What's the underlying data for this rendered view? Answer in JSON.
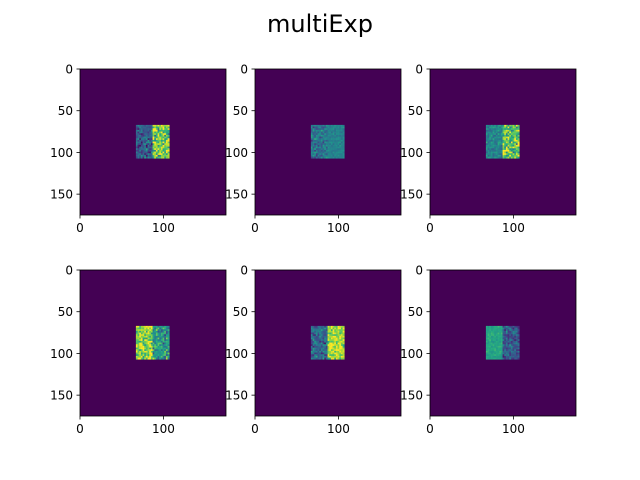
{
  "chart_data": {
    "type": "heatmap",
    "title": "multiExp",
    "colormap": "viridis",
    "panels": [
      {
        "index": 1,
        "xlim": [
          0,
          175
        ],
        "ylim": [
          175,
          0
        ],
        "xticks": [
          0,
          100
        ],
        "xtick_labels": [
          "0",
          "100"
        ],
        "yticks": [
          0,
          50,
          100,
          150
        ],
        "ytick_labels": [
          "0",
          "50",
          "100",
          "150"
        ],
        "background_value": 0.0,
        "square": {
          "x0": 67,
          "x1": 107,
          "y0": 67,
          "y1": 107
        },
        "halves": [
          {
            "x0": 67,
            "x1": 87,
            "mean": 0.3,
            "noise": 0.12
          },
          {
            "x0": 87,
            "x1": 107,
            "mean": 0.8,
            "noise": 0.18
          }
        ]
      },
      {
        "index": 2,
        "xlim": [
          0,
          175
        ],
        "ylim": [
          175,
          0
        ],
        "xticks": [
          0,
          100
        ],
        "xtick_labels": [
          "0",
          "100"
        ],
        "yticks": [
          0,
          50,
          100,
          150
        ],
        "ytick_labels": [
          "0",
          "50",
          "100",
          "150"
        ],
        "background_value": 0.0,
        "square": {
          "x0": 67,
          "x1": 107,
          "y0": 67,
          "y1": 107
        },
        "halves": [
          {
            "x0": 67,
            "x1": 87,
            "mean": 0.4,
            "noise": 0.1
          },
          {
            "x0": 87,
            "x1": 107,
            "mean": 0.45,
            "noise": 0.04
          }
        ]
      },
      {
        "index": 3,
        "xlim": [
          0,
          175
        ],
        "ylim": [
          175,
          0
        ],
        "xticks": [
          0,
          100
        ],
        "xtick_labels": [
          "0",
          "100"
        ],
        "yticks": [
          0,
          50,
          100,
          150
        ],
        "ytick_labels": [
          "0",
          "50",
          "100",
          "150"
        ],
        "background_value": 0.0,
        "square": {
          "x0": 67,
          "x1": 107,
          "y0": 67,
          "y1": 107
        },
        "halves": [
          {
            "x0": 67,
            "x1": 87,
            "mean": 0.45,
            "noise": 0.08
          },
          {
            "x0": 87,
            "x1": 107,
            "mean": 0.75,
            "noise": 0.18
          }
        ]
      },
      {
        "index": 4,
        "xlim": [
          0,
          175
        ],
        "ylim": [
          175,
          0
        ],
        "xticks": [
          0,
          100
        ],
        "xtick_labels": [
          "0",
          "100"
        ],
        "yticks": [
          0,
          50,
          100,
          150
        ],
        "ytick_labels": [
          "0",
          "50",
          "100",
          "150"
        ],
        "background_value": 0.0,
        "square": {
          "x0": 67,
          "x1": 107,
          "y0": 67,
          "y1": 107
        },
        "halves": [
          {
            "x0": 67,
            "x1": 87,
            "mean": 0.85,
            "noise": 0.15
          },
          {
            "x0": 87,
            "x1": 107,
            "mean": 0.55,
            "noise": 0.15
          }
        ]
      },
      {
        "index": 5,
        "xlim": [
          0,
          175
        ],
        "ylim": [
          175,
          0
        ],
        "xticks": [
          0,
          100
        ],
        "xtick_labels": [
          "0",
          "100"
        ],
        "yticks": [
          0,
          50,
          100,
          150
        ],
        "ytick_labels": [
          "0",
          "50",
          "100",
          "150"
        ],
        "background_value": 0.0,
        "square": {
          "x0": 67,
          "x1": 107,
          "y0": 67,
          "y1": 107
        },
        "halves": [
          {
            "x0": 67,
            "x1": 87,
            "mean": 0.35,
            "noise": 0.12
          },
          {
            "x0": 87,
            "x1": 107,
            "mean": 0.88,
            "noise": 0.12
          }
        ]
      },
      {
        "index": 6,
        "xlim": [
          0,
          175
        ],
        "ylim": [
          175,
          0
        ],
        "xticks": [
          0,
          100
        ],
        "xtick_labels": [
          "0",
          "100"
        ],
        "yticks": [
          0,
          50,
          100,
          150
        ],
        "ytick_labels": [
          "0",
          "50",
          "100",
          "150"
        ],
        "background_value": 0.0,
        "square": {
          "x0": 67,
          "x1": 107,
          "y0": 67,
          "y1": 107
        },
        "halves": [
          {
            "x0": 67,
            "x1": 87,
            "mean": 0.6,
            "noise": 0.04
          },
          {
            "x0": 87,
            "x1": 107,
            "mean": 0.3,
            "noise": 0.1
          }
        ]
      }
    ]
  }
}
